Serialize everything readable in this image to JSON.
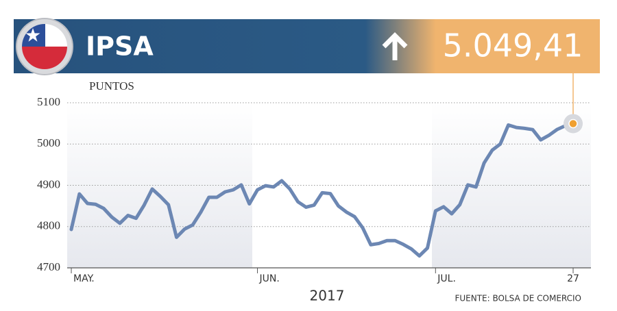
{
  "chart_data": {
    "type": "line",
    "title": "IPSA",
    "last_value_label": "5.049,41",
    "y_label": "PUNTOS",
    "x_label": "2017",
    "source": "FUENTE: BOLSA DE COMERCIO",
    "ylim": [
      4700,
      5100
    ],
    "yticks": [
      4700,
      4800,
      4900,
      5000,
      5100
    ],
    "grid": true,
    "categories": [
      "MAY.",
      null,
      null,
      null,
      null,
      null,
      null,
      null,
      null,
      null,
      null,
      null,
      null,
      null,
      null,
      null,
      null,
      null,
      null,
      null,
      null,
      null,
      null,
      "JUN.",
      null,
      null,
      null,
      null,
      null,
      null,
      null,
      null,
      null,
      null,
      null,
      null,
      null,
      null,
      null,
      null,
      null,
      null,
      null,
      null,
      null,
      "JUL.",
      null,
      null,
      null,
      null,
      null,
      null,
      null,
      null,
      null,
      null,
      null,
      null,
      null,
      null,
      null,
      null,
      "27"
    ],
    "series": [
      {
        "name": "IPSA",
        "color": "#6c87b3",
        "values": [
          4793,
          4879,
          4856,
          4854,
          4844,
          4823,
          4808,
          4827,
          4820,
          4852,
          4891,
          4873,
          4853,
          4774,
          4794,
          4804,
          4835,
          4871,
          4871,
          4884,
          4889,
          4901,
          4855,
          4889,
          4899,
          4896,
          4911,
          4891,
          4860,
          4847,
          4852,
          4882,
          4880,
          4850,
          4835,
          4824,
          4797,
          4756,
          4759,
          4766,
          4766,
          4757,
          4746,
          4729,
          4748,
          4838,
          4848,
          4831,
          4853,
          4901,
          4896,
          4954,
          4985,
          5000,
          5046,
          5040,
          5038,
          5035,
          5010,
          5021,
          5035,
          5044,
          5049.41
        ]
      }
    ]
  }
}
